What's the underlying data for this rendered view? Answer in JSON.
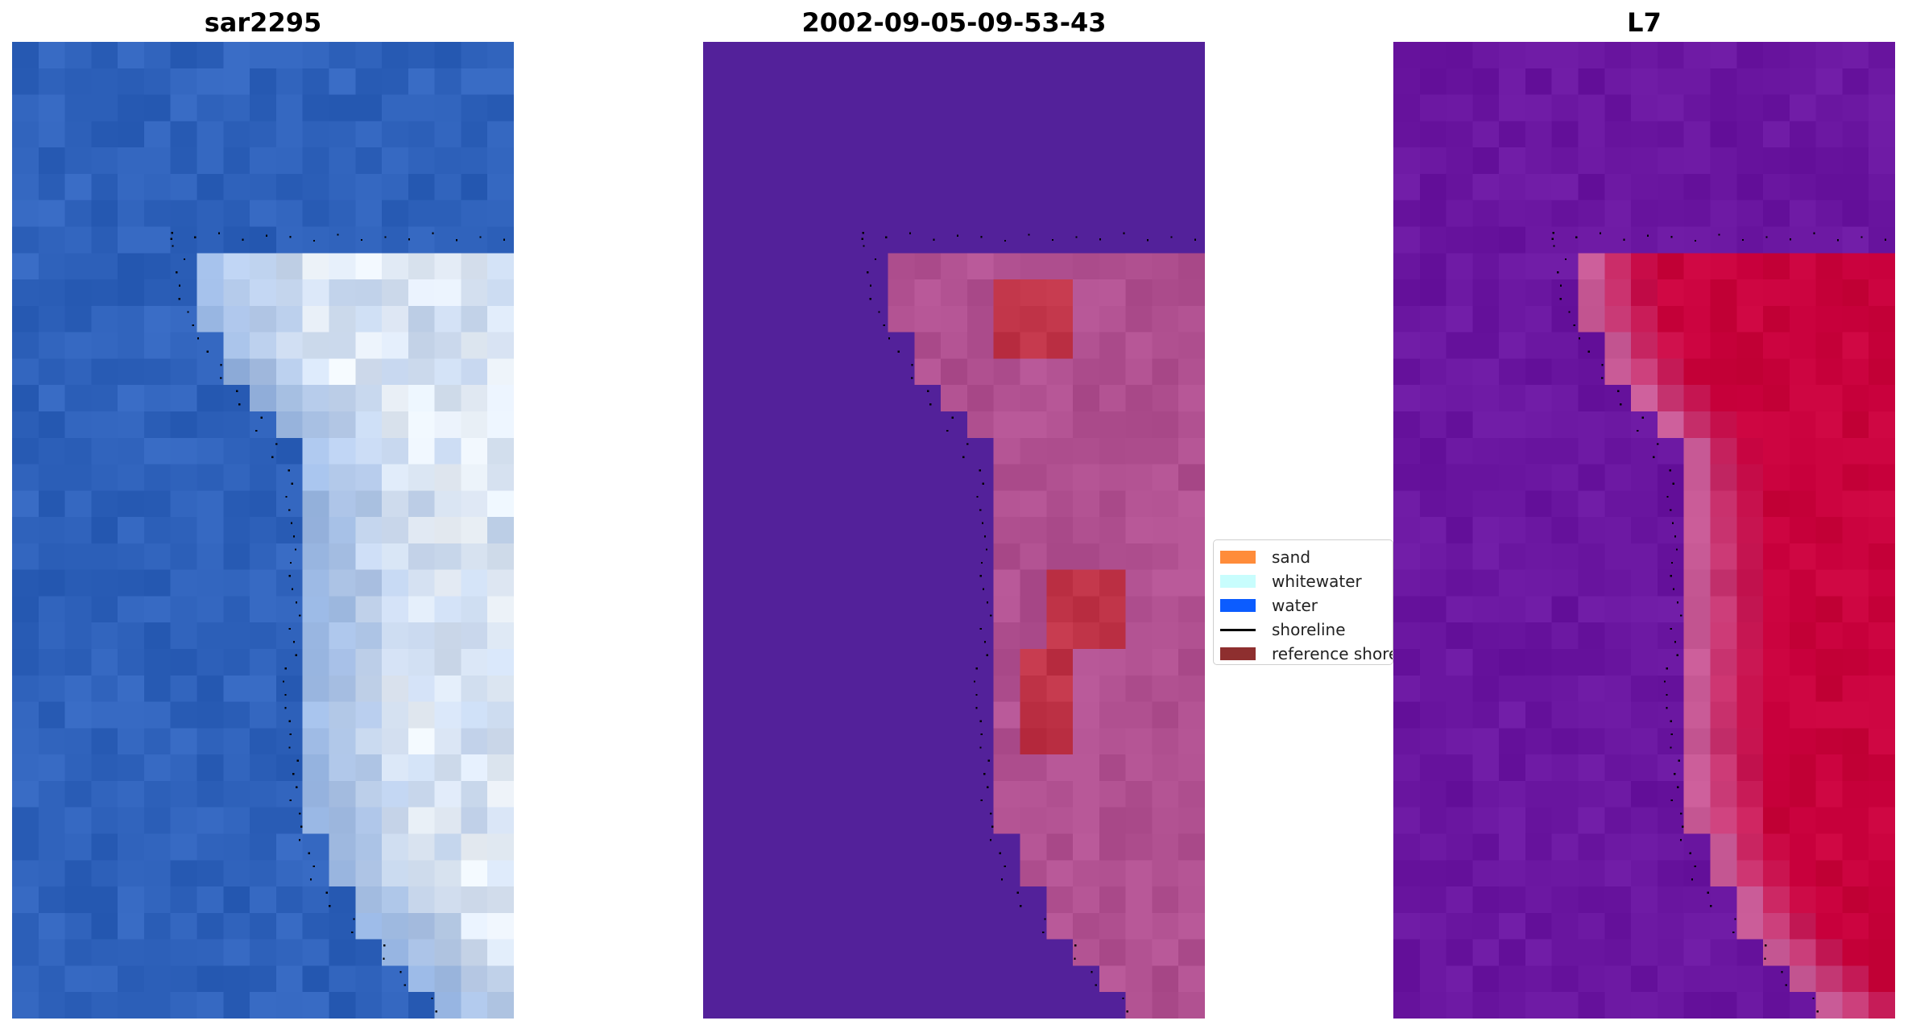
{
  "panels": [
    {
      "title": "sar2295"
    },
    {
      "title": "2002-09-05-09-53-43"
    },
    {
      "title": "L7"
    }
  ],
  "legend": {
    "items": [
      {
        "label": "sand",
        "kind": "patch",
        "color": "#ff8c3a"
      },
      {
        "label": "whitewater",
        "kind": "patch",
        "color": "#c8fdfd"
      },
      {
        "label": "water",
        "kind": "patch",
        "color": "#0b5cff"
      },
      {
        "label": "shoreline",
        "kind": "line",
        "color": "#000000"
      },
      {
        "label": "reference shoreline",
        "kind": "patch",
        "color": "#8e2f2f"
      }
    ]
  },
  "colors": {
    "rgb_water": "#2f62bb",
    "class_water": "#53219a",
    "class_sand": "#b05090",
    "ndwi_low": "#6a16a0",
    "ndwi_high": "#c8003c"
  }
}
